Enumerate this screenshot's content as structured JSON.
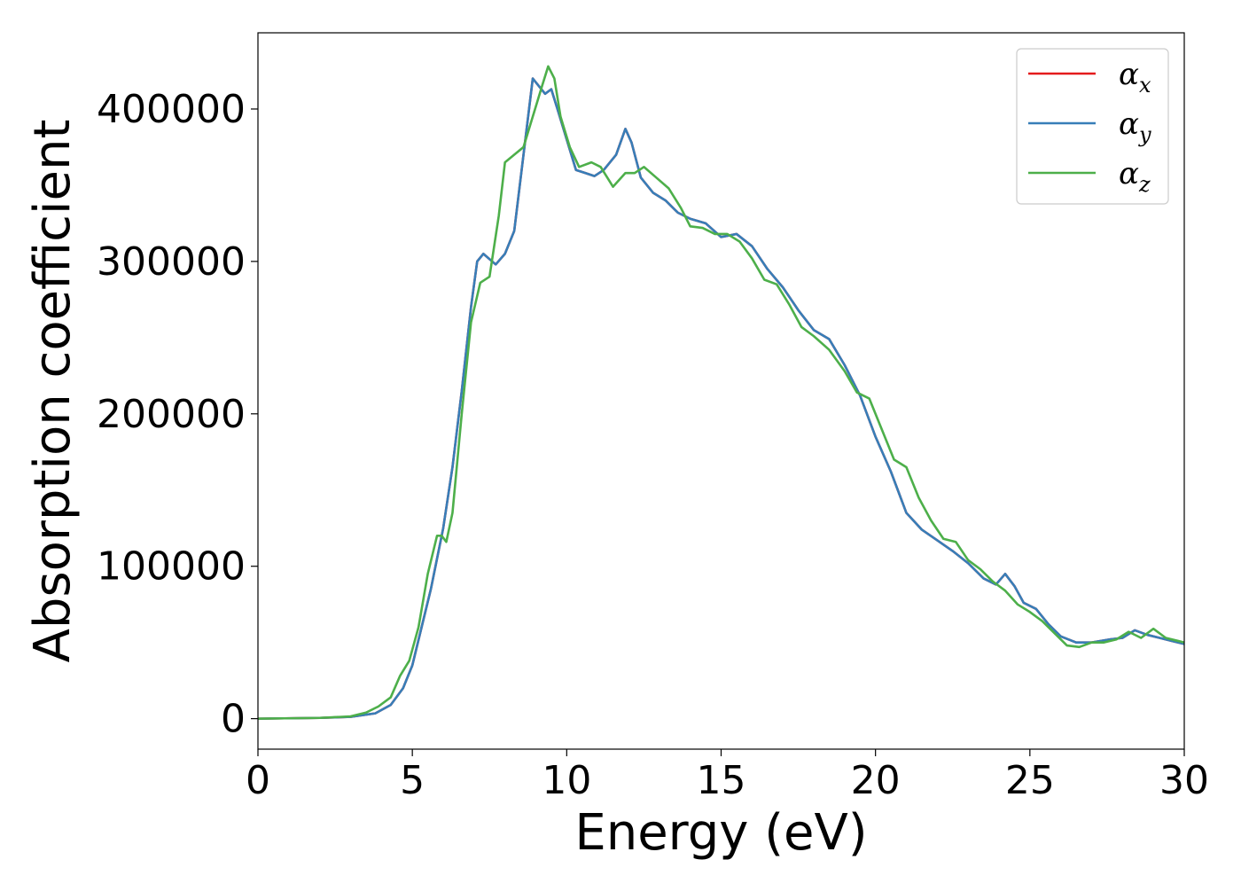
{
  "chart_data": {
    "type": "line",
    "title": "",
    "xlabel": "Energy (eV)",
    "ylabel": "Absorption coefficient",
    "xlim": [
      0,
      30
    ],
    "ylim": [
      -20000,
      450000
    ],
    "xticks": [
      0,
      5,
      10,
      15,
      20,
      25,
      30
    ],
    "xtick_labels": [
      "0",
      "5",
      "10",
      "15",
      "20",
      "25",
      "30"
    ],
    "yticks": [
      0,
      100000,
      200000,
      300000,
      400000
    ],
    "ytick_labels": [
      "0",
      "100000",
      "200000",
      "300000",
      "400000"
    ],
    "grid": false,
    "legend_position": "top-right",
    "series": [
      {
        "name": "αx",
        "symbol": "α",
        "subscript": "x",
        "color": "#e41a1c",
        "points": [
          [
            0,
            0
          ],
          [
            2,
            500
          ],
          [
            3,
            1200
          ],
          [
            3.8,
            3500
          ],
          [
            4.3,
            9000
          ],
          [
            4.7,
            20000
          ],
          [
            5.0,
            35000
          ],
          [
            5.3,
            60000
          ],
          [
            5.6,
            85000
          ],
          [
            6.0,
            125000
          ],
          [
            6.3,
            165000
          ],
          [
            6.6,
            215000
          ],
          [
            6.9,
            270000
          ],
          [
            7.1,
            300000
          ],
          [
            7.3,
            305000
          ],
          [
            7.7,
            298000
          ],
          [
            8.0,
            305000
          ],
          [
            8.3,
            320000
          ],
          [
            8.6,
            370000
          ],
          [
            8.9,
            420000
          ],
          [
            9.1,
            415000
          ],
          [
            9.3,
            410000
          ],
          [
            9.5,
            413000
          ],
          [
            9.7,
            400000
          ],
          [
            10.0,
            380000
          ],
          [
            10.3,
            360000
          ],
          [
            10.6,
            358000
          ],
          [
            10.9,
            356000
          ],
          [
            11.2,
            360000
          ],
          [
            11.6,
            370000
          ],
          [
            11.9,
            387000
          ],
          [
            12.1,
            378000
          ],
          [
            12.4,
            355000
          ],
          [
            12.8,
            345000
          ],
          [
            13.2,
            340000
          ],
          [
            13.6,
            332000
          ],
          [
            14.0,
            328000
          ],
          [
            14.5,
            325000
          ],
          [
            15.0,
            316000
          ],
          [
            15.5,
            318000
          ],
          [
            16.0,
            310000
          ],
          [
            16.5,
            295000
          ],
          [
            17.0,
            283000
          ],
          [
            17.5,
            268000
          ],
          [
            18.0,
            255000
          ],
          [
            18.5,
            249000
          ],
          [
            19.0,
            232000
          ],
          [
            19.5,
            212000
          ],
          [
            20.0,
            185000
          ],
          [
            20.5,
            162000
          ],
          [
            21.0,
            135000
          ],
          [
            21.5,
            124000
          ],
          [
            22.0,
            117000
          ],
          [
            22.5,
            110000
          ],
          [
            23.0,
            102000
          ],
          [
            23.5,
            92000
          ],
          [
            23.9,
            88000
          ],
          [
            24.2,
            95000
          ],
          [
            24.5,
            87000
          ],
          [
            24.8,
            76000
          ],
          [
            25.2,
            72000
          ],
          [
            25.6,
            62000
          ],
          [
            26.0,
            54000
          ],
          [
            26.5,
            50000
          ],
          [
            27.0,
            50000
          ],
          [
            27.6,
            52000
          ],
          [
            28.0,
            53000
          ],
          [
            28.4,
            58000
          ],
          [
            28.8,
            55000
          ],
          [
            29.2,
            53000
          ],
          [
            29.6,
            51000
          ],
          [
            30.0,
            49000
          ]
        ]
      },
      {
        "name": "αy",
        "symbol": "α",
        "subscript": "y",
        "color": "#377eb8",
        "points": [
          [
            0,
            0
          ],
          [
            2,
            500
          ],
          [
            3,
            1200
          ],
          [
            3.8,
            3500
          ],
          [
            4.3,
            9000
          ],
          [
            4.7,
            20000
          ],
          [
            5.0,
            35000
          ],
          [
            5.3,
            60000
          ],
          [
            5.6,
            85000
          ],
          [
            6.0,
            125000
          ],
          [
            6.3,
            165000
          ],
          [
            6.6,
            215000
          ],
          [
            6.9,
            270000
          ],
          [
            7.1,
            300000
          ],
          [
            7.3,
            305000
          ],
          [
            7.7,
            298000
          ],
          [
            8.0,
            305000
          ],
          [
            8.3,
            320000
          ],
          [
            8.6,
            370000
          ],
          [
            8.9,
            420000
          ],
          [
            9.1,
            415000
          ],
          [
            9.3,
            410000
          ],
          [
            9.5,
            413000
          ],
          [
            9.7,
            400000
          ],
          [
            10.0,
            380000
          ],
          [
            10.3,
            360000
          ],
          [
            10.6,
            358000
          ],
          [
            10.9,
            356000
          ],
          [
            11.2,
            360000
          ],
          [
            11.6,
            370000
          ],
          [
            11.9,
            387000
          ],
          [
            12.1,
            378000
          ],
          [
            12.4,
            355000
          ],
          [
            12.8,
            345000
          ],
          [
            13.2,
            340000
          ],
          [
            13.6,
            332000
          ],
          [
            14.0,
            328000
          ],
          [
            14.5,
            325000
          ],
          [
            15.0,
            316000
          ],
          [
            15.5,
            318000
          ],
          [
            16.0,
            310000
          ],
          [
            16.5,
            295000
          ],
          [
            17.0,
            283000
          ],
          [
            17.5,
            268000
          ],
          [
            18.0,
            255000
          ],
          [
            18.5,
            249000
          ],
          [
            19.0,
            232000
          ],
          [
            19.5,
            212000
          ],
          [
            20.0,
            185000
          ],
          [
            20.5,
            162000
          ],
          [
            21.0,
            135000
          ],
          [
            21.5,
            124000
          ],
          [
            22.0,
            117000
          ],
          [
            22.5,
            110000
          ],
          [
            23.0,
            102000
          ],
          [
            23.5,
            92000
          ],
          [
            23.9,
            88000
          ],
          [
            24.2,
            95000
          ],
          [
            24.5,
            87000
          ],
          [
            24.8,
            76000
          ],
          [
            25.2,
            72000
          ],
          [
            25.6,
            62000
          ],
          [
            26.0,
            54000
          ],
          [
            26.5,
            50000
          ],
          [
            27.0,
            50000
          ],
          [
            27.6,
            52000
          ],
          [
            28.0,
            53000
          ],
          [
            28.4,
            58000
          ],
          [
            28.8,
            55000
          ],
          [
            29.2,
            53000
          ],
          [
            29.6,
            51000
          ],
          [
            30.0,
            49000
          ]
        ]
      },
      {
        "name": "αz",
        "symbol": "α",
        "subscript": "z",
        "color": "#4daf4a",
        "points": [
          [
            0,
            0
          ],
          [
            2,
            500
          ],
          [
            3,
            1500
          ],
          [
            3.5,
            4000
          ],
          [
            3.9,
            8000
          ],
          [
            4.3,
            14000
          ],
          [
            4.6,
            28000
          ],
          [
            4.9,
            38000
          ],
          [
            5.2,
            60000
          ],
          [
            5.5,
            95000
          ],
          [
            5.8,
            120000
          ],
          [
            5.95,
            120000
          ],
          [
            6.1,
            116000
          ],
          [
            6.3,
            135000
          ],
          [
            6.6,
            200000
          ],
          [
            6.9,
            260000
          ],
          [
            7.2,
            286000
          ],
          [
            7.5,
            290000
          ],
          [
            7.8,
            330000
          ],
          [
            8.0,
            365000
          ],
          [
            8.3,
            370000
          ],
          [
            8.6,
            375000
          ],
          [
            8.9,
            395000
          ],
          [
            9.2,
            415000
          ],
          [
            9.4,
            428000
          ],
          [
            9.6,
            420000
          ],
          [
            9.8,
            395000
          ],
          [
            10.1,
            375000
          ],
          [
            10.4,
            362000
          ],
          [
            10.8,
            365000
          ],
          [
            11.1,
            362000
          ],
          [
            11.5,
            349000
          ],
          [
            11.9,
            358000
          ],
          [
            12.2,
            358000
          ],
          [
            12.5,
            362000
          ],
          [
            12.9,
            355000
          ],
          [
            13.3,
            348000
          ],
          [
            13.7,
            335000
          ],
          [
            14.0,
            323000
          ],
          [
            14.4,
            322000
          ],
          [
            14.8,
            318000
          ],
          [
            15.2,
            318000
          ],
          [
            15.6,
            313000
          ],
          [
            16.0,
            302000
          ],
          [
            16.4,
            288000
          ],
          [
            16.8,
            285000
          ],
          [
            17.2,
            272000
          ],
          [
            17.6,
            257000
          ],
          [
            18.0,
            251000
          ],
          [
            18.5,
            242000
          ],
          [
            19.0,
            228000
          ],
          [
            19.4,
            214000
          ],
          [
            19.8,
            210000
          ],
          [
            20.2,
            190000
          ],
          [
            20.6,
            170000
          ],
          [
            21.0,
            165000
          ],
          [
            21.4,
            145000
          ],
          [
            21.8,
            130000
          ],
          [
            22.2,
            118000
          ],
          [
            22.6,
            116000
          ],
          [
            23.0,
            104000
          ],
          [
            23.4,
            98000
          ],
          [
            23.8,
            90000
          ],
          [
            24.2,
            84000
          ],
          [
            24.6,
            75000
          ],
          [
            25.0,
            70000
          ],
          [
            25.4,
            64000
          ],
          [
            25.8,
            56000
          ],
          [
            26.2,
            48000
          ],
          [
            26.6,
            47000
          ],
          [
            27.0,
            50000
          ],
          [
            27.4,
            50000
          ],
          [
            27.8,
            52000
          ],
          [
            28.2,
            57000
          ],
          [
            28.6,
            53000
          ],
          [
            29.0,
            59000
          ],
          [
            29.4,
            53000
          ],
          [
            29.8,
            51000
          ],
          [
            30.0,
            50000
          ]
        ]
      }
    ]
  }
}
